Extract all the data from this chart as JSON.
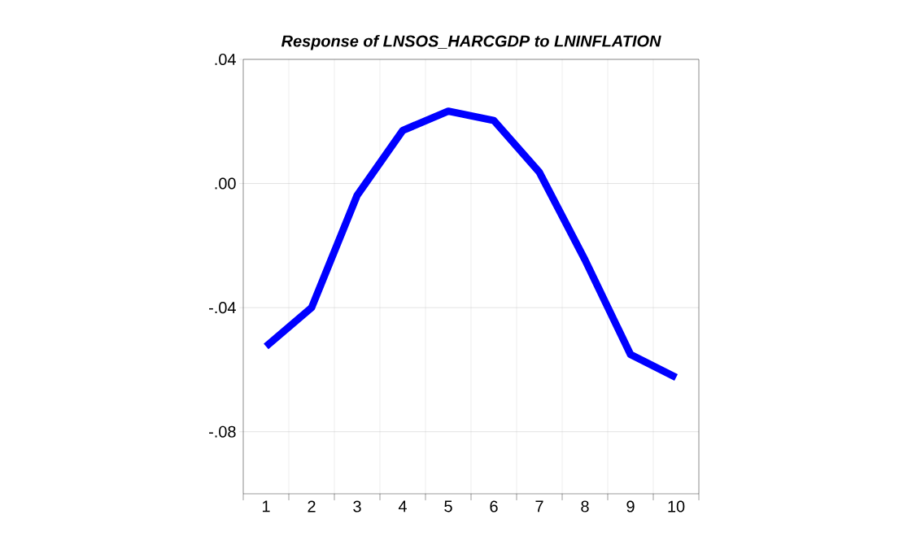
{
  "chart_data": {
    "type": "line",
    "title": "Response of LNSOS_HARCGDP to LNINFLATION",
    "categories": [
      "1",
      "2",
      "3",
      "4",
      "5",
      "6",
      "7",
      "8",
      "9",
      "10"
    ],
    "series": [
      {
        "color": "#0000ff",
        "values": [
          -0.0525,
          -0.04,
          -0.0038,
          0.0171,
          0.0233,
          0.0203,
          0.0036,
          -0.0246,
          -0.0551,
          -0.0625
        ]
      }
    ],
    "ylim": [
      -0.1,
      0.04
    ],
    "yticks": [
      {
        "value": 0.04,
        "label": ".04"
      },
      {
        "value": 0.0,
        "label": ".00"
      },
      {
        "value": -0.04,
        "label": "-.04"
      },
      {
        "value": -0.08,
        "label": "-.08"
      }
    ],
    "grid": true,
    "line_style": "solid",
    "marker": "none"
  }
}
